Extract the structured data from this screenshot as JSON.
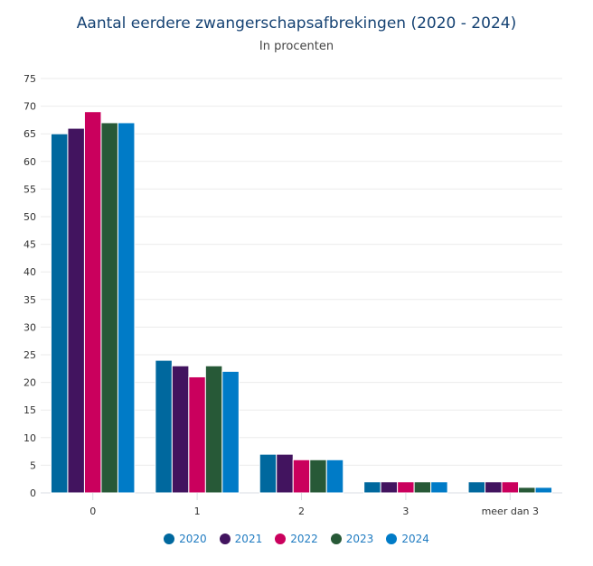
{
  "chart_data": {
    "type": "bar",
    "title": "Aantal eerdere zwangerschapsafbrekingen (2020 - 2024)",
    "subtitle": "In procenten",
    "xlabel": "",
    "ylabel": "",
    "categories": [
      "0",
      "1",
      "2",
      "3",
      "meer dan 3"
    ],
    "ylim": [
      0,
      75
    ],
    "yticks": [
      0,
      5,
      10,
      15,
      20,
      25,
      30,
      35,
      40,
      45,
      50,
      55,
      60,
      65,
      70,
      75
    ],
    "grid": true,
    "legend_position": "bottom",
    "series": [
      {
        "name": "2020",
        "color": "#00689e",
        "values": [
          65,
          24,
          7,
          2,
          2
        ]
      },
      {
        "name": "2021",
        "color": "#42145f",
        "values": [
          66,
          23,
          7,
          2,
          2
        ]
      },
      {
        "name": "2022",
        "color": "#ca005d",
        "values": [
          69,
          21,
          6,
          2,
          2
        ]
      },
      {
        "name": "2023",
        "color": "#275937",
        "values": [
          67,
          23,
          6,
          2,
          1
        ]
      },
      {
        "name": "2024",
        "color": "#007bc7",
        "values": [
          67,
          22,
          6,
          2,
          1
        ]
      }
    ]
  }
}
